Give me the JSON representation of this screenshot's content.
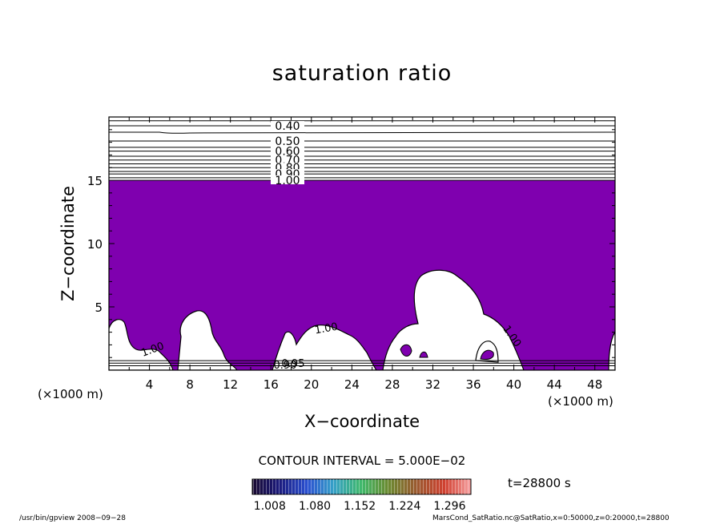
{
  "chart_data": {
    "type": "contour",
    "title": "saturation ratio",
    "xlabel": "X−coordinate",
    "ylabel": "Z−coordinate",
    "x_unit": "(×1000 m)",
    "y_unit": "(×1000 m)",
    "xlim": [
      0,
      50
    ],
    "ylim": [
      0,
      20
    ],
    "x_ticks": [
      4,
      8,
      12,
      16,
      20,
      24,
      28,
      32,
      36,
      40,
      44,
      48
    ],
    "y_ticks": [
      5,
      10,
      15
    ],
    "contour_interval_text": "CONTOUR INTERVAL = 5.000E−02",
    "contour_labels_upper": [
      "0.40",
      "0.50",
      "0.60",
      "0.70",
      "0.80",
      "0.90",
      "1.00"
    ],
    "contour_labels_upper_z": [
      19.3,
      18.1,
      17.3,
      16.6,
      16.0,
      15.5,
      15.0
    ],
    "upper_contour_levels_z": [
      19.7,
      19.3,
      18.8,
      18.1,
      17.6,
      17.3,
      16.9,
      16.6,
      16.3,
      16.0,
      15.7,
      15.5,
      15.2,
      15.0
    ],
    "contour_labels_lower": [
      "1.00",
      "1.00",
      "1.00",
      "0.90",
      "0.95"
    ],
    "supersaturated_top_z": 15.0,
    "colorbar_ticks": [
      "1.008",
      "1.080",
      "1.152",
      "1.224",
      "1.296"
    ],
    "colorbar_range": [
      0.98,
      1.33
    ],
    "fill_color": "#7f00af",
    "time_label": "t=28800 s"
  },
  "footer": {
    "left": "/usr/bin/gpview   2008−09−28",
    "right": "MarsCond_SatRatio.nc@SatRatio,x=0:50000,z=0:20000,t=28800"
  }
}
